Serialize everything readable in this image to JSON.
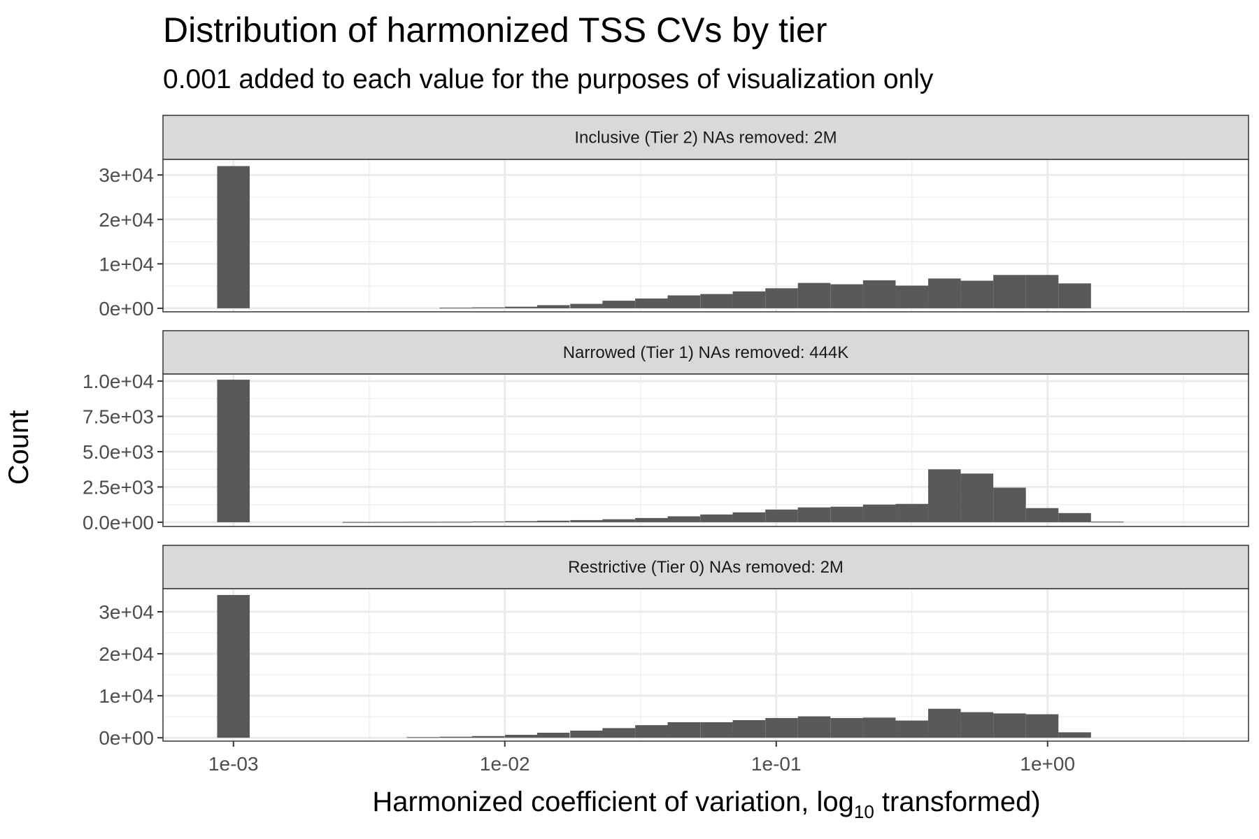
{
  "title": "Distribution of harmonized TSS CVs by tier",
  "subtitle": "0.001 added to each value for the purposes of visualization only",
  "xlabel": {
    "main": "Harmonized coefficient of variation,  log",
    "sub": "10",
    "tail": "  transformed)"
  },
  "ylabel": "Count",
  "chart_data": {
    "type": "bar",
    "x_scale": "log10",
    "xlim": [
      0.00055,
      5.5
    ],
    "x_ticks": [
      0.001,
      0.01,
      0.1,
      1
    ],
    "x_tick_labels": [
      "1e-03",
      "1e-02",
      "1e-01",
      "1e+00"
    ],
    "bin_width_log10": 0.12,
    "grid": true,
    "panels": [
      {
        "strip": "Inclusive (Tier 2) NAs removed: 2M",
        "ylim": [
          -800,
          33500
        ],
        "y_ticks": [
          0,
          10000,
          20000,
          30000
        ],
        "y_tick_labels": [
          "0e+00",
          "1e+04",
          "2e+04",
          "3e+04"
        ],
        "bins": [
          {
            "x": 0.001,
            "y": 32000
          },
          {
            "x": 0.0066,
            "y": 120
          },
          {
            "x": 0.0087,
            "y": 200
          },
          {
            "x": 0.0115,
            "y": 350
          },
          {
            "x": 0.0151,
            "y": 700
          },
          {
            "x": 0.02,
            "y": 1000
          },
          {
            "x": 0.0263,
            "y": 1700
          },
          {
            "x": 0.0347,
            "y": 2200
          },
          {
            "x": 0.0457,
            "y": 2900
          },
          {
            "x": 0.0603,
            "y": 3200
          },
          {
            "x": 0.0794,
            "y": 3800
          },
          {
            "x": 0.1047,
            "y": 4500
          },
          {
            "x": 0.138,
            "y": 5700
          },
          {
            "x": 0.182,
            "y": 5400
          },
          {
            "x": 0.2399,
            "y": 6300
          },
          {
            "x": 0.3162,
            "y": 5100
          },
          {
            "x": 0.4169,
            "y": 6700
          },
          {
            "x": 0.5495,
            "y": 6200
          },
          {
            "x": 0.7244,
            "y": 7500
          },
          {
            "x": 0.955,
            "y": 7500
          },
          {
            "x": 1.2589,
            "y": 5600
          }
        ]
      },
      {
        "strip": "Narrowed (Tier 1) NAs removed: 444K",
        "ylim": [
          -300,
          10500
        ],
        "y_ticks": [
          0,
          2500,
          5000,
          7500,
          10000
        ],
        "y_tick_labels": [
          "0.0e+00",
          "2.5e+03",
          "5.0e+03",
          "7.5e+03",
          "1.0e+04"
        ],
        "bins": [
          {
            "x": 0.001,
            "y": 10100
          },
          {
            "x": 0.0029,
            "y": 15
          },
          {
            "x": 0.0038,
            "y": 20
          },
          {
            "x": 0.005,
            "y": 25
          },
          {
            "x": 0.0066,
            "y": 30
          },
          {
            "x": 0.0087,
            "y": 50
          },
          {
            "x": 0.0115,
            "y": 80
          },
          {
            "x": 0.0151,
            "y": 110
          },
          {
            "x": 0.02,
            "y": 150
          },
          {
            "x": 0.0263,
            "y": 210
          },
          {
            "x": 0.0347,
            "y": 300
          },
          {
            "x": 0.0457,
            "y": 420
          },
          {
            "x": 0.0603,
            "y": 550
          },
          {
            "x": 0.0794,
            "y": 700
          },
          {
            "x": 0.1047,
            "y": 900
          },
          {
            "x": 0.138,
            "y": 1050
          },
          {
            "x": 0.182,
            "y": 1100
          },
          {
            "x": 0.2399,
            "y": 1250
          },
          {
            "x": 0.3162,
            "y": 1300
          },
          {
            "x": 0.4169,
            "y": 3750
          },
          {
            "x": 0.5495,
            "y": 3450
          },
          {
            "x": 0.7244,
            "y": 2450
          },
          {
            "x": 0.955,
            "y": 1000
          },
          {
            "x": 1.2589,
            "y": 650
          },
          {
            "x": 1.6596,
            "y": 40
          }
        ]
      },
      {
        "strip": "Restrictive (Tier 0) NAs removed: 2M",
        "ylim": [
          -800,
          35500
        ],
        "y_ticks": [
          0,
          10000,
          20000,
          30000
        ],
        "y_tick_labels": [
          "0e+00",
          "1e+04",
          "2e+04",
          "3e+04"
        ],
        "bins": [
          {
            "x": 0.001,
            "y": 34000
          },
          {
            "x": 0.005,
            "y": 150
          },
          {
            "x": 0.0066,
            "y": 250
          },
          {
            "x": 0.0087,
            "y": 400
          },
          {
            "x": 0.0115,
            "y": 700
          },
          {
            "x": 0.0151,
            "y": 1200
          },
          {
            "x": 0.02,
            "y": 1700
          },
          {
            "x": 0.0263,
            "y": 2300
          },
          {
            "x": 0.0347,
            "y": 3000
          },
          {
            "x": 0.0457,
            "y": 3700
          },
          {
            "x": 0.0603,
            "y": 3700
          },
          {
            "x": 0.0794,
            "y": 4200
          },
          {
            "x": 0.1047,
            "y": 4700
          },
          {
            "x": 0.138,
            "y": 5100
          },
          {
            "x": 0.182,
            "y": 4700
          },
          {
            "x": 0.2399,
            "y": 4800
          },
          {
            "x": 0.3162,
            "y": 4100
          },
          {
            "x": 0.4169,
            "y": 6900
          },
          {
            "x": 0.5495,
            "y": 6100
          },
          {
            "x": 0.7244,
            "y": 5800
          },
          {
            "x": 0.955,
            "y": 5600
          },
          {
            "x": 1.2589,
            "y": 1300
          }
        ]
      }
    ]
  }
}
